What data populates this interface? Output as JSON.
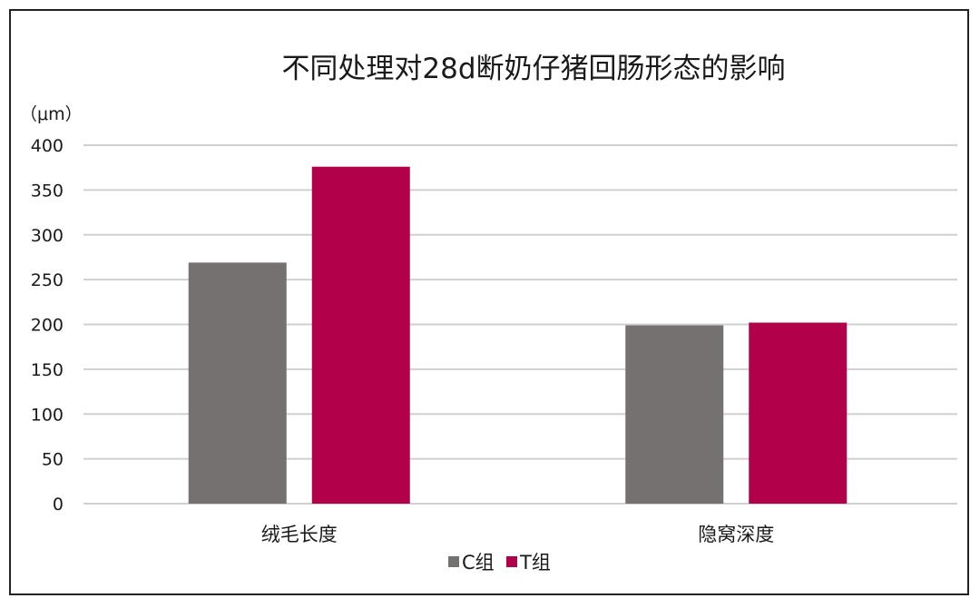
{
  "chart_data": {
    "type": "bar",
    "title": "不同处理对28d断奶仔猪回肠形态的影响",
    "unit_label": "（μm）",
    "categories": [
      "绒毛长度",
      "隐窝深度"
    ],
    "series": [
      {
        "name": "C组",
        "color": "#767171",
        "values": [
          269,
          199
        ]
      },
      {
        "name": "T组",
        "color": "#B3004B",
        "values": [
          376,
          202
        ]
      }
    ],
    "yticks": [
      0,
      50,
      100,
      150,
      200,
      250,
      300,
      350,
      400
    ],
    "ylim": [
      0,
      400
    ],
    "grid": true,
    "legend_position": "bottom"
  }
}
